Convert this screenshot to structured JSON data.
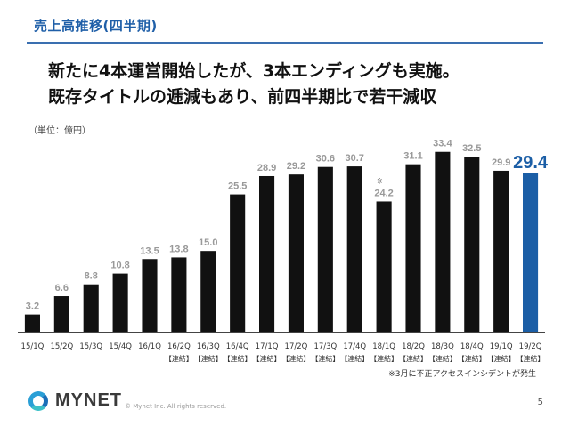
{
  "header": {
    "section_title": "売上高推移(四半期)",
    "headline_line1": "新たに4本運営開始したが、3本エンディングも実施。",
    "headline_line2": "既存タイトルの逓減もあり、前四半期比で若干減収"
  },
  "unit_label": "（単位：億円）",
  "chart_data": {
    "type": "bar",
    "categories": [
      "15/1Q",
      "15/2Q",
      "15/3Q",
      "15/4Q",
      "16/1Q",
      "16/2Q",
      "16/3Q",
      "16/4Q",
      "17/1Q",
      "17/2Q",
      "17/3Q",
      "17/4Q",
      "18/1Q",
      "18/2Q",
      "18/3Q",
      "18/4Q",
      "19/1Q",
      "19/2Q"
    ],
    "sublabels": [
      "",
      "",
      "",
      "",
      "",
      "【連結】",
      "【連結】",
      "【連結】",
      "【連結】",
      "【連結】",
      "【連結】",
      "【連結】",
      "【連結】",
      "【連結】",
      "【連結】",
      "【連結】",
      "【連結】",
      "【連結】"
    ],
    "values": [
      3.2,
      6.6,
      8.8,
      10.8,
      13.5,
      13.8,
      15.0,
      25.5,
      28.9,
      29.2,
      30.6,
      30.7,
      24.2,
      31.1,
      33.4,
      32.5,
      29.9,
      29.4
    ],
    "value_labels": [
      "3.2",
      "6.6",
      "8.8",
      "10.8",
      "13.5",
      "13.8",
      "15.0",
      "25.5",
      "28.9",
      "29.2",
      "30.6",
      "30.7",
      "24.2",
      "31.1",
      "33.4",
      "32.5",
      "29.9",
      "29.4"
    ],
    "annotations": [
      {
        "category": "18/1Q",
        "text": "※"
      }
    ],
    "highlight_index": 17,
    "ylim": [
      0,
      36
    ],
    "bar_color": "#111111",
    "highlight_color": "#1b5ea6",
    "label_color": "#999999"
  },
  "footnote": "※3月に不正アクセスインシデントが発生",
  "footer": {
    "logo_text": "MYNET",
    "copyright": "© Mynet Inc. All rights reserved.",
    "page_number": "5"
  }
}
